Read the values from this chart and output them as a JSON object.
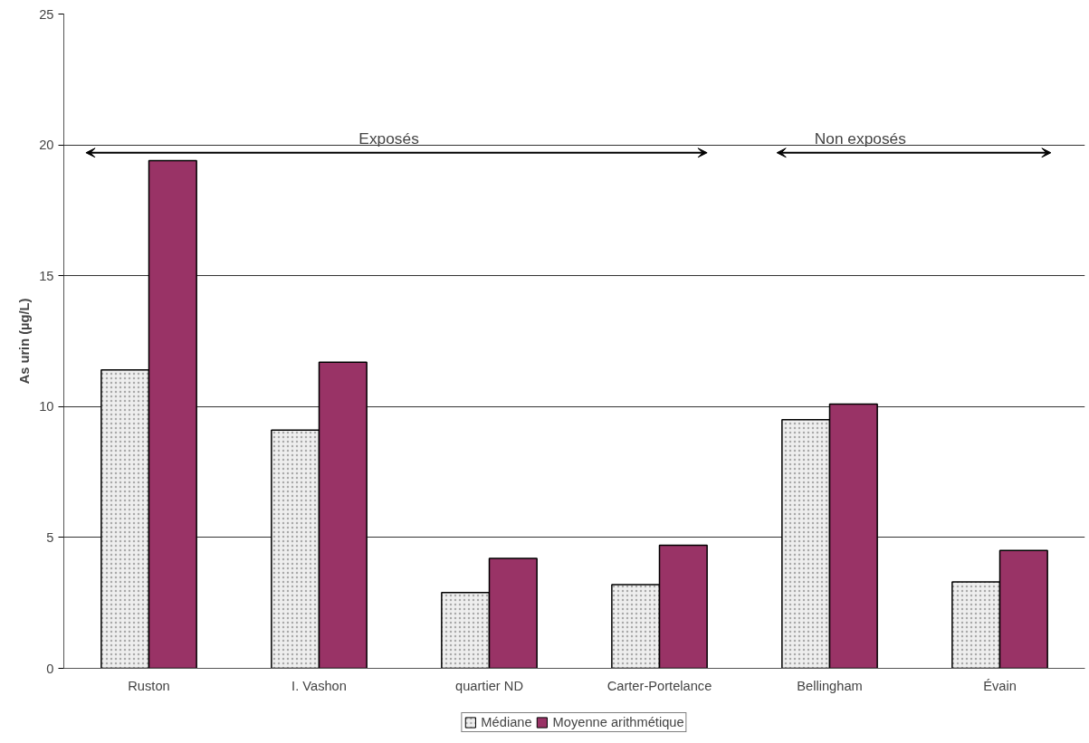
{
  "chart_data": {
    "type": "bar",
    "ylabel": "As urin (µg/L)",
    "categories": [
      "Ruston",
      "I. Vashon",
      "quartier ND",
      "Carter-Portelance",
      "Bellingham",
      "Évain"
    ],
    "series": [
      {
        "name": "Médiane",
        "color": "#eeeeee",
        "values": [
          11.4,
          9.1,
          2.9,
          3.2,
          9.5,
          3.3
        ]
      },
      {
        "name": "Moyenne arithmétique",
        "color": "#993366",
        "values": [
          19.4,
          11.7,
          4.2,
          4.7,
          10.1,
          4.5
        ]
      }
    ],
    "ylim": [
      0,
      25
    ],
    "yticks": [
      0,
      5,
      10,
      15,
      20,
      25
    ],
    "grid": "y",
    "legend": "bottom",
    "annotations": [
      "Exposés",
      "Non exposés"
    ]
  }
}
